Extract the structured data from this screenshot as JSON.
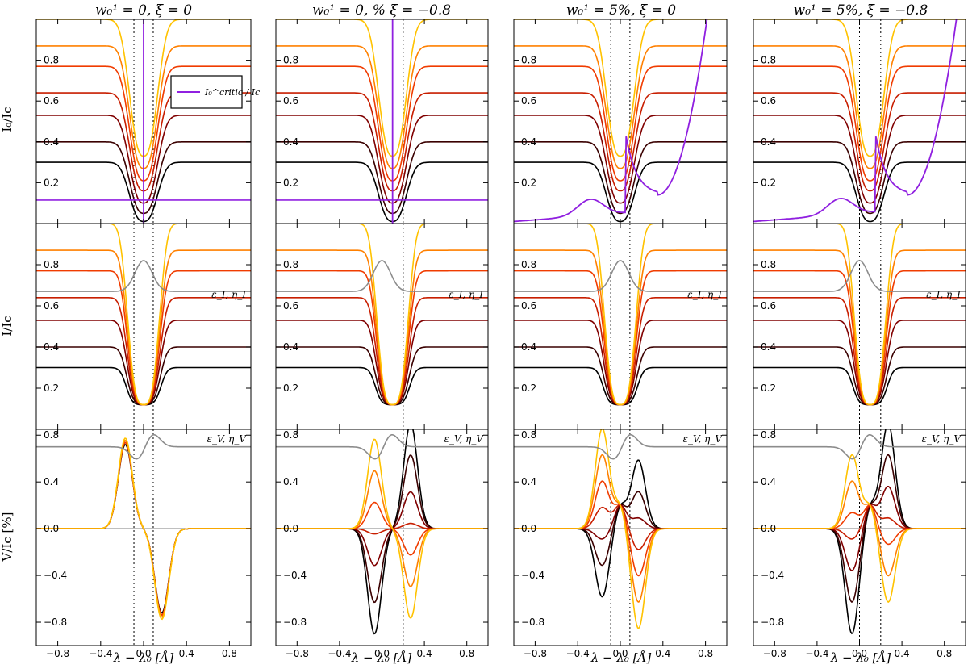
{
  "chart_data": {
    "type": "line",
    "x_range": [
      -1.0,
      1.0
    ],
    "x_ticks": [
      -0.8,
      -0.4,
      0.0,
      0.4,
      0.8
    ],
    "x_tick_labels": [
      "−0.8",
      "−0.4",
      "0.0",
      "0.4",
      "0.8"
    ],
    "xlabel": "λ − λ₀ [Å]",
    "column_titles": [
      "w₀¹ = 0,   ξ = 0",
      "w₀¹ = 0, %   ξ = −0.8",
      "w₀¹ = 5%,   ξ = 0",
      "w₀¹ = 5%,   ξ = −0.8"
    ],
    "row_ylabels": [
      "I₀/I⁣c",
      "I/I⁣c",
      "V/I⁣c [%]"
    ],
    "rows": [
      {
        "name": "I0",
        "ylim": [
          0.0,
          1.0
        ],
        "yticks": [
          0.2,
          0.4,
          0.6,
          0.8
        ],
        "ytick_labels": [
          "0.2",
          "0.4",
          "0.6",
          "0.8"
        ]
      },
      {
        "name": "I",
        "ylim": [
          0.0,
          1.0
        ],
        "yticks": [
          0.2,
          0.4,
          0.6,
          0.8
        ],
        "ytick_labels": [
          "0.2",
          "0.4",
          "0.6",
          "0.8"
        ],
        "annotation": "ε_I, η_I"
      },
      {
        "name": "V",
        "ylim": [
          -1.0,
          0.85
        ],
        "yticks": [
          -0.8,
          -0.4,
          0.0,
          0.4,
          0.8
        ],
        "ytick_labels": [
          "−0.8",
          "−0.4",
          "0.0",
          "0.4",
          "0.8"
        ],
        "annotation": "ε_V, η_V"
      }
    ],
    "series_colors": [
      "#000000",
      "#3a0000",
      "#800000",
      "#c81e00",
      "#f03c00",
      "#ff8000",
      "#ffc200"
    ],
    "continuum_levels": [
      0.3,
      0.4,
      0.53,
      0.64,
      0.77,
      0.87,
      1.0
    ],
    "line_core_levels": [
      0.01,
      0.05,
      0.1,
      0.16,
      0.21,
      0.27,
      0.33
    ],
    "critical_color": "#9020e0",
    "critical_level": 0.115,
    "legend": {
      "label": "I₀^critic / I⁣c"
    },
    "profile_color": "#8c8c8c",
    "columns": [
      {
        "center": 0.0,
        "dotted": [
          -0.09,
          0.09
        ],
        "critical": "flat",
        "v_amps": [
          0.8,
          0.82,
          0.82,
          0.82,
          0.82,
          0.84,
          0.86
        ],
        "v_offset": 0.0
      },
      {
        "center": 0.1,
        "dotted": [
          0.0,
          0.2
        ],
        "critical": "flat",
        "v_amps": [
          -1.0,
          -0.7,
          -0.35,
          -0.05,
          0.25,
          0.55,
          0.85
        ],
        "v_offset": 0.0
      },
      {
        "center": 0.0,
        "dotted": [
          -0.09,
          0.09
        ],
        "critical": "rising",
        "v_amps": [
          -0.65,
          -0.35,
          -0.1,
          0.2,
          0.45,
          0.7,
          0.95
        ],
        "v_offset": 0.2
      },
      {
        "center": 0.1,
        "dotted": [
          0.0,
          0.2
        ],
        "critical": "rising",
        "v_amps": [
          -1.0,
          -0.7,
          -0.4,
          -0.1,
          0.15,
          0.45,
          0.7
        ],
        "v_offset": 0.2
      }
    ]
  }
}
